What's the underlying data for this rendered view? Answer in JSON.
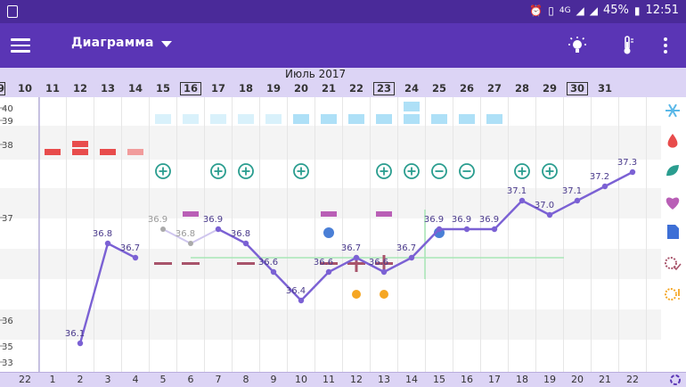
{
  "status_bar": {
    "network": "4G",
    "battery": "45%",
    "time": "12:51"
  },
  "toolbar": {
    "title": "Диаграмма",
    "icons": [
      "menu-icon",
      "lightbulb-icon",
      "thermometer-icon",
      "more-vert-icon"
    ]
  },
  "calendar": {
    "month_label": "Июль 2017",
    "dates": [
      "10",
      "11",
      "12",
      "13",
      "14",
      "15",
      "16",
      "17",
      "18",
      "19",
      "20",
      "21",
      "22",
      "23",
      "24",
      "25",
      "26",
      "27",
      "28",
      "29",
      "30",
      "31"
    ],
    "boxed_dates": [
      "16",
      "23",
      "30"
    ],
    "cycle_days": [
      "1",
      "2",
      "3",
      "4",
      "5",
      "6",
      "7",
      "8",
      "9",
      "10",
      "11",
      "12",
      "13",
      "14",
      "15",
      "16",
      "17",
      "18",
      "19",
      "20",
      "21",
      "22"
    ],
    "prev_cycle_day": "22",
    "prev_date_partial": "9"
  },
  "y_axis": {
    "ticks": [
      "40",
      "39",
      "38",
      "37",
      "36",
      "35",
      "33"
    ]
  },
  "right_icons": [
    "snowflake-icon",
    "drop-icon",
    "leaf-icon",
    "heart-icon",
    "document-icon",
    "flower-check-icon",
    "flower-warning-icon",
    "cycle-icon"
  ],
  "chart_data": {
    "type": "line",
    "days": [
      2,
      3,
      4,
      5,
      6,
      7,
      8,
      9,
      10,
      11,
      12,
      13,
      14,
      15,
      16,
      17,
      18,
      19,
      20,
      21,
      22
    ],
    "temperatures": [
      36.1,
      36.8,
      36.7,
      36.9,
      36.8,
      36.9,
      36.8,
      36.6,
      36.4,
      36.6,
      36.7,
      36.6,
      36.7,
      36.9,
      36.9,
      36.9,
      37.1,
      37.0,
      37.1,
      37.2,
      37.3
    ],
    "labels": [
      "36.1",
      "36.8",
      "36.7",
      "36.9",
      "36.8",
      "36.9",
      "36.8",
      "36.6",
      "36.4",
      "36.6",
      "36.7",
      "36.6",
      "36.7",
      "36.9",
      "36.9",
      "36.9",
      "37.1",
      "37.0",
      "37.1",
      "37.2",
      "37.3"
    ],
    "excluded_days": [
      5,
      6
    ],
    "cover_line": 36.7,
    "ovulation_day": 14,
    "menstruation": {
      "1": "light",
      "2": "heavy",
      "3": "light",
      "4": "spotting"
    },
    "cervical_mucus": {
      "5": "light",
      "6": "light",
      "7": "light",
      "8": "light",
      "9": "light",
      "10": "medium",
      "11": "medium",
      "12": "medium",
      "13": "medium",
      "14": "heavy",
      "15": "medium",
      "16": "medium",
      "17": "medium"
    },
    "intercourse": {
      "5": "protected",
      "7": "protected",
      "8": "protected",
      "10": "protected",
      "13": "protected",
      "14": "protected",
      "15": "unprotected",
      "16": "unprotected",
      "18": "protected",
      "19": "protected"
    },
    "sex_drive_days": [
      6,
      11,
      13
    ],
    "cervix_days": [
      11,
      15
    ],
    "symptom_minus_days": [
      5,
      6,
      8,
      11
    ],
    "symptom_plus_days": [
      12,
      13
    ],
    "test_days": [
      12,
      13
    ]
  }
}
